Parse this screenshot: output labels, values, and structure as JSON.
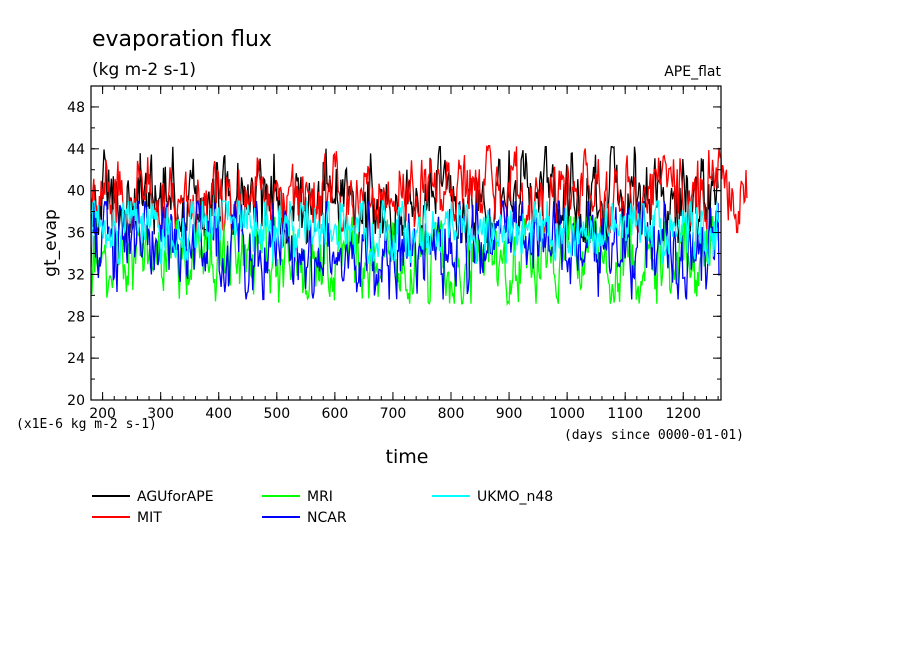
{
  "chart_data": {
    "type": "line",
    "title": "evaporation flux",
    "subtitle": "(kg m-2 s-1)",
    "tag": "APE_flat",
    "xlabel": "time",
    "ylabel": "gt_evap",
    "y_multiplier_note": "(x1E-6 kg m-2 s-1)",
    "x_units_note": "(days since 0000-01-01)",
    "xlim": [
      180,
      1265
    ],
    "ylim": [
      20,
      50
    ],
    "x_ticks": [
      200,
      300,
      400,
      500,
      600,
      700,
      800,
      900,
      1000,
      1100,
      1200
    ],
    "y_ticks": [
      20,
      24,
      28,
      32,
      36,
      40,
      44,
      48
    ],
    "grid": false,
    "legend_position": "bottom-left",
    "series": [
      {
        "name": "AGUforAPE",
        "color": "#000000",
        "x_range": [
          180,
          1260
        ],
        "mean": 39.0,
        "amplitude": 1.9,
        "min": 35.0,
        "max": 44.2
      },
      {
        "name": "MIT",
        "color": "#ff0000",
        "x_range": [
          180,
          1310
        ],
        "mean": 39.3,
        "amplitude": 1.6,
        "min": 36.0,
        "max": 44.3
      },
      {
        "name": "MRI",
        "color": "#00ff00",
        "x_range": [
          180,
          1260
        ],
        "mean": 33.4,
        "amplitude": 1.7,
        "min": 29.2,
        "max": 37.5
      },
      {
        "name": "NCAR",
        "color": "#0000ff",
        "x_range": [
          180,
          1262
        ],
        "mean": 34.6,
        "amplitude": 1.9,
        "min": 29.6,
        "max": 39.0
      },
      {
        "name": "UKMO_n48",
        "color": "#00ffff",
        "x_range": [
          180,
          1262
        ],
        "mean": 36.3,
        "amplitude": 1.3,
        "min": 33.0,
        "max": 39.0
      }
    ]
  }
}
